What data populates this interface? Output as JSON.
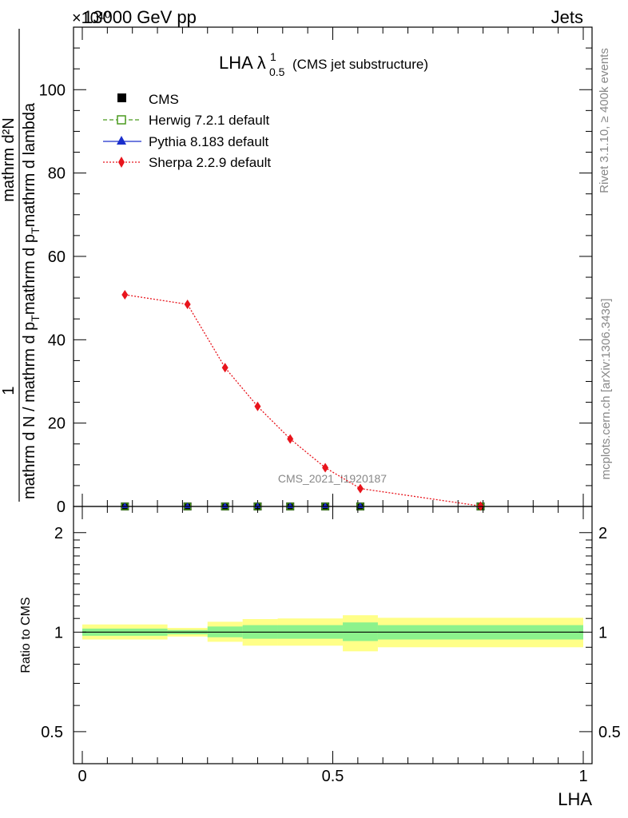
{
  "header": {
    "energy_label": "13000 GeV pp",
    "process_label": "Jets",
    "exponent_label": "×10¹⁰"
  },
  "side_labels": {
    "rivet": "Rivet 3.1.10, ≥ 400k events",
    "mcplots": "mcplots.cern.ch [arXiv:1306.3436]"
  },
  "watermark": "CMS_2021_I1920187",
  "chart_data": [
    {
      "type": "line",
      "title": "LHA λ",
      "title_sup": "1",
      "title_sub": "0.5",
      "title_suffix": "(CMS jet substructure)",
      "ylabel_top": "1",
      "ylabel_num": "mathrm d²N",
      "ylabel_den": "mathrm d N / mathrm d p_T mathrm d p_T mathrm d lambda",
      "ylabel_den_parts": [
        "mathrm d N / mathrm d p",
        "T",
        "mathrm d p",
        "T",
        "mathrm d lambda"
      ],
      "xlim": [
        0,
        1
      ],
      "ylim": [
        0,
        115
      ],
      "y_scale": "x1e10",
      "yticks": [
        0,
        20,
        40,
        60,
        80,
        100
      ],
      "ytick_labels": [
        "0",
        "20",
        "40",
        "60",
        "80",
        "100"
      ],
      "legend_position": "top-left",
      "series": [
        {
          "name": "CMS",
          "style": "black-square-markers",
          "x": [
            0.085,
            0.21,
            0.285,
            0.35,
            0.415,
            0.485,
            0.555,
            0.795
          ],
          "values": [
            0,
            0,
            0,
            0,
            0,
            0,
            0,
            0
          ]
        },
        {
          "name": "Herwig 7.2.1 default",
          "style": "green-dashed-open-square",
          "x": [
            0.085,
            0.21,
            0.285,
            0.35,
            0.415,
            0.485,
            0.555,
            0.795
          ],
          "values": [
            0,
            0,
            0,
            0,
            0,
            0,
            0,
            0
          ]
        },
        {
          "name": "Pythia 8.183 default",
          "style": "blue-solid-triangle",
          "x": [
            0.085,
            0.21,
            0.285,
            0.35,
            0.415,
            0.485,
            0.555,
            0.795
          ],
          "values": [
            0,
            0,
            0,
            0,
            0,
            0,
            0,
            0
          ]
        },
        {
          "name": "Sherpa 2.2.9 default",
          "style": "red-dotted-diamond",
          "x": [
            0.085,
            0.21,
            0.285,
            0.35,
            0.415,
            0.485,
            0.555,
            0.795
          ],
          "values": [
            50.8,
            48.5,
            33.3,
            24.0,
            16.2,
            9.3,
            4.3,
            0.1
          ]
        }
      ]
    },
    {
      "type": "area",
      "ylabel": "Ratio to CMS",
      "xlabel": "LHA",
      "xlim": [
        0,
        1
      ],
      "ylim": [
        0.4,
        2.4
      ],
      "y_scale": "log",
      "yticks": [
        0.5,
        1,
        2
      ],
      "ytick_labels": [
        "0.5",
        "1",
        "2"
      ],
      "xticks": [
        0,
        0.5,
        1
      ],
      "xtick_labels": [
        "0",
        "0.5",
        "1"
      ],
      "reference_line": 1,
      "bins": [
        {
          "low": 0.0,
          "high": 0.17,
          "yellow": [
            0.95,
            1.055
          ],
          "green": [
            0.975,
            1.025
          ]
        },
        {
          "low": 0.17,
          "high": 0.25,
          "yellow": [
            0.97,
            1.03
          ],
          "green": [
            0.985,
            1.015
          ]
        },
        {
          "low": 0.25,
          "high": 0.32,
          "yellow": [
            0.935,
            1.075
          ],
          "green": [
            0.965,
            1.04
          ]
        },
        {
          "low": 0.32,
          "high": 0.39,
          "yellow": [
            0.91,
            1.095
          ],
          "green": [
            0.955,
            1.05
          ]
        },
        {
          "low": 0.39,
          "high": 0.52,
          "yellow": [
            0.91,
            1.1
          ],
          "green": [
            0.955,
            1.05
          ]
        },
        {
          "low": 0.52,
          "high": 0.59,
          "yellow": [
            0.875,
            1.125
          ],
          "green": [
            0.94,
            1.07
          ]
        },
        {
          "low": 0.59,
          "high": 1.0,
          "yellow": [
            0.9,
            1.105
          ],
          "green": [
            0.95,
            1.05
          ]
        }
      ]
    }
  ]
}
